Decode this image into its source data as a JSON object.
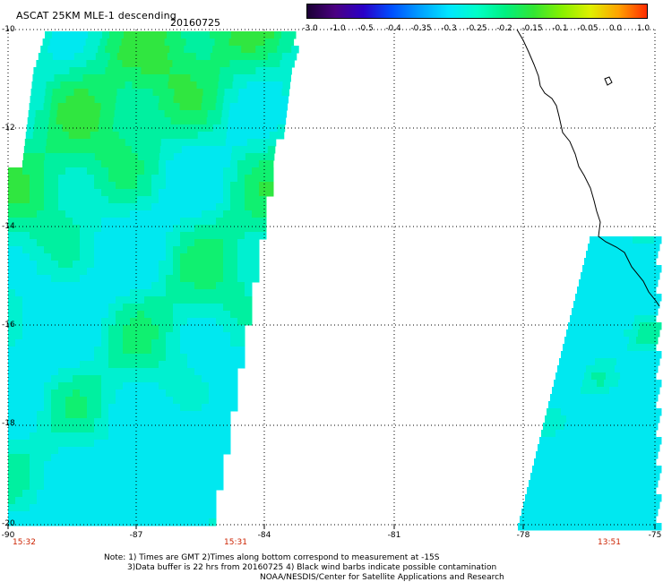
{
  "header": {
    "title": "ASCAT 25KM MLE-1 descending",
    "date": "20160725"
  },
  "colorbar": {
    "labels": [
      "-3.0",
      "-1.0",
      "-0.5",
      "-0.4",
      "-0.35",
      "-0.3",
      "-0.25",
      "-0.2",
      "-0.15",
      "-0.1",
      "-0.05",
      "0.0",
      "1.0"
    ],
    "colors": [
      "#1a0033",
      "#4b0082",
      "#2a00c8",
      "#0050ff",
      "#00a0ff",
      "#00e6ff",
      "#00ffc8",
      "#00f080",
      "#33e633",
      "#88f000",
      "#e0f000",
      "#ffa000",
      "#ff2a00"
    ]
  },
  "axes": {
    "lat_labels": [
      "-10",
      "-12",
      "-14",
      "-16",
      "-18",
      "-20"
    ],
    "lon_labels": [
      "-90",
      "-87",
      "-84",
      "-81",
      "-78",
      "-75"
    ]
  },
  "pass_times": [
    "15:32",
    "15:31",
    "13:51"
  ],
  "notes": {
    "line1": "Note: 1) Times are GMT 2)Times along bottom correspond to measurement at -15S",
    "line2": "3)Data buffer is 22 hrs from 20160725 4) Black wind barbs indicate possible contamination",
    "line3": "NOAA/NESDIS/Center for Satellite Applications and Research"
  }
}
